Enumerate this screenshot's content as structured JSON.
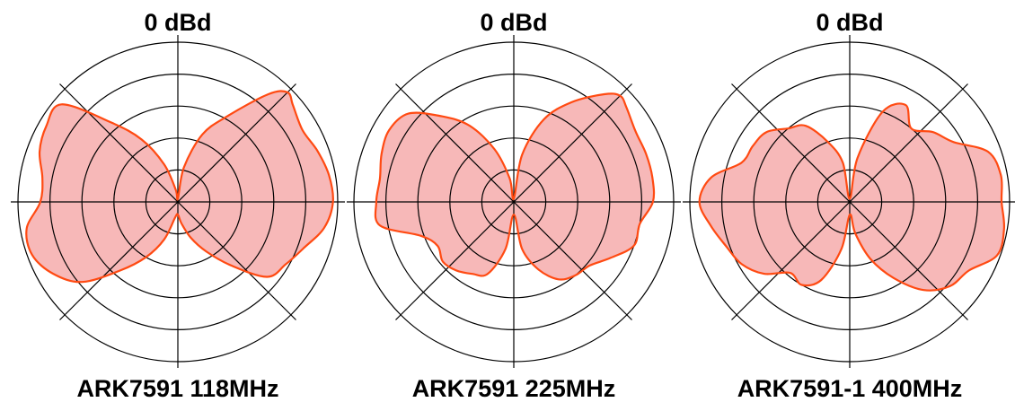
{
  "chart_data": [
    {
      "type": "polar-area",
      "title": "ARK7591 118MHz",
      "reference_label": "0 dBd",
      "rings": 5,
      "colors": {
        "fill": "#f7b8b8",
        "stroke": "#ff4a12",
        "grid": "#000000"
      },
      "pattern": [
        [
          0,
          0.02
        ],
        [
          10,
          0.22
        ],
        [
          20,
          0.45
        ],
        [
          30,
          0.62
        ],
        [
          40,
          0.88
        ],
        [
          45,
          0.97
        ],
        [
          50,
          0.94
        ],
        [
          60,
          0.9
        ],
        [
          70,
          0.93
        ],
        [
          80,
          0.96
        ],
        [
          90,
          0.97
        ],
        [
          100,
          0.93
        ],
        [
          110,
          0.84
        ],
        [
          120,
          0.78
        ],
        [
          130,
          0.73
        ],
        [
          140,
          0.52
        ],
        [
          150,
          0.36
        ],
        [
          160,
          0.24
        ],
        [
          170,
          0.14
        ],
        [
          180,
          0.08
        ],
        [
          190,
          0.1
        ],
        [
          200,
          0.25
        ],
        [
          210,
          0.4
        ],
        [
          220,
          0.56
        ],
        [
          230,
          0.78
        ],
        [
          240,
          0.9
        ],
        [
          250,
          0.97
        ],
        [
          260,
          0.96
        ],
        [
          270,
          0.86
        ],
        [
          280,
          0.86
        ],
        [
          290,
          0.92
        ],
        [
          300,
          0.95
        ],
        [
          310,
          0.95
        ],
        [
          320,
          0.65
        ],
        [
          330,
          0.45
        ],
        [
          340,
          0.25
        ],
        [
          350,
          0.08
        ]
      ]
    },
    {
      "type": "polar-area",
      "title": "ARK7591 225MHz",
      "reference_label": "0 dBd",
      "rings": 5,
      "colors": {
        "fill": "#f7b8b8",
        "stroke": "#ff4a12",
        "grid": "#000000"
      },
      "pattern": [
        [
          0,
          0.02
        ],
        [
          10,
          0.3
        ],
        [
          20,
          0.55
        ],
        [
          30,
          0.72
        ],
        [
          40,
          0.88
        ],
        [
          45,
          0.94
        ],
        [
          50,
          0.92
        ],
        [
          60,
          0.88
        ],
        [
          70,
          0.88
        ],
        [
          80,
          0.88
        ],
        [
          90,
          0.87
        ],
        [
          100,
          0.8
        ],
        [
          110,
          0.8
        ],
        [
          120,
          0.7
        ],
        [
          130,
          0.62
        ],
        [
          140,
          0.6
        ],
        [
          150,
          0.56
        ],
        [
          160,
          0.45
        ],
        [
          170,
          0.3
        ],
        [
          180,
          0.08
        ],
        [
          190,
          0.3
        ],
        [
          200,
          0.48
        ],
        [
          210,
          0.52
        ],
        [
          220,
          0.56
        ],
        [
          230,
          0.58
        ],
        [
          240,
          0.55
        ],
        [
          250,
          0.62
        ],
        [
          260,
          0.85
        ],
        [
          270,
          0.86
        ],
        [
          280,
          0.85
        ],
        [
          290,
          0.88
        ],
        [
          300,
          0.9
        ],
        [
          310,
          0.86
        ],
        [
          320,
          0.7
        ],
        [
          330,
          0.55
        ],
        [
          340,
          0.35
        ],
        [
          350,
          0.15
        ]
      ]
    },
    {
      "type": "polar-area",
      "title": "ARK7591-1 400MHz",
      "reference_label": "0 dBd",
      "rings": 5,
      "colors": {
        "fill": "#f7b8b8",
        "stroke": "#ff4a12",
        "grid": "#000000"
      },
      "pattern": [
        [
          0,
          0.02
        ],
        [
          10,
          0.28
        ],
        [
          20,
          0.6
        ],
        [
          30,
          0.7
        ],
        [
          40,
          0.6
        ],
        [
          50,
          0.68
        ],
        [
          60,
          0.75
        ],
        [
          70,
          0.92
        ],
        [
          80,
          0.96
        ],
        [
          90,
          0.95
        ],
        [
          100,
          0.98
        ],
        [
          110,
          0.98
        ],
        [
          120,
          0.86
        ],
        [
          130,
          0.82
        ],
        [
          140,
          0.72
        ],
        [
          150,
          0.55
        ],
        [
          160,
          0.38
        ],
        [
          170,
          0.2
        ],
        [
          180,
          0.08
        ],
        [
          190,
          0.3
        ],
        [
          200,
          0.52
        ],
        [
          210,
          0.6
        ],
        [
          220,
          0.58
        ],
        [
          230,
          0.7
        ],
        [
          240,
          0.78
        ],
        [
          250,
          0.82
        ],
        [
          260,
          0.88
        ],
        [
          270,
          0.94
        ],
        [
          280,
          0.88
        ],
        [
          290,
          0.72
        ],
        [
          300,
          0.7
        ],
        [
          310,
          0.68
        ],
        [
          320,
          0.6
        ],
        [
          330,
          0.55
        ],
        [
          340,
          0.4
        ],
        [
          350,
          0.25
        ]
      ]
    }
  ]
}
